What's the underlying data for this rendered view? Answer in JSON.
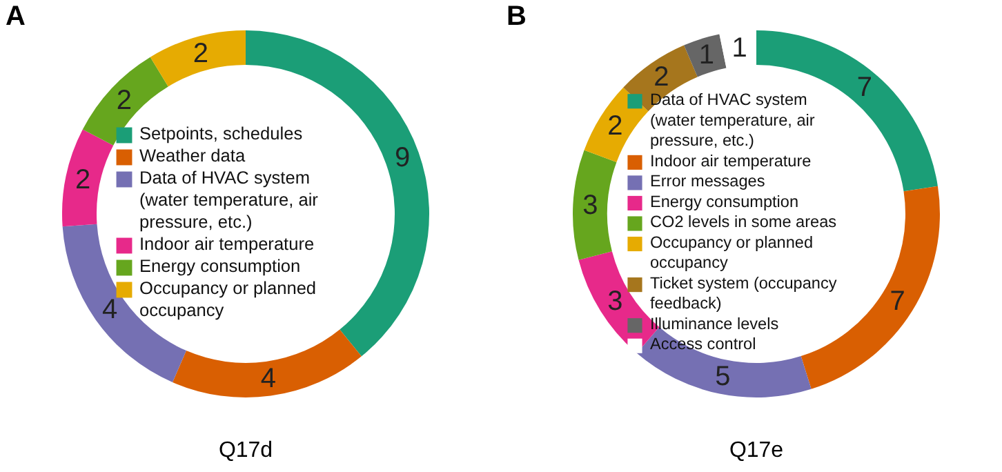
{
  "chart_data": [
    {
      "type": "donut",
      "title": "A",
      "xlabel": "Q17d",
      "categories": [
        "Setpoints, schedules",
        "Weather data",
        "Data of HVAC system (water temperature, air pressure, etc.)",
        "Indoor air temperature",
        "Energy consumption",
        "Occupancy or planned occupancy"
      ],
      "values": [
        9,
        4,
        4,
        2,
        2,
        2
      ],
      "colors": [
        "#1b9e77",
        "#d95f02",
        "#7570b3",
        "#e7298a",
        "#66a61e",
        "#e6ab02"
      ],
      "data_labels": true,
      "legend": "center"
    },
    {
      "type": "donut",
      "title": "B",
      "xlabel": "Q17e",
      "categories": [
        "Data of HVAC system (water temperature, air pressure, etc.)",
        "Indoor air temperature",
        "Error messages",
        "Energy consumption",
        "CO2 levels in some areas",
        "Occupancy or planned occupancy",
        "Ticket system (occupancy feedback)",
        "Illuminance levels",
        "Access control"
      ],
      "values": [
        7,
        7,
        5,
        3,
        3,
        2,
        2,
        1,
        1
      ],
      "colors": [
        "#1b9e77",
        "#d95f02",
        "#7570b3",
        "#e7298a",
        "#66a61e",
        "#e6ab02",
        "#a6761d",
        "#666666",
        "#ffffff"
      ],
      "data_labels": true,
      "legend": "center"
    }
  ]
}
